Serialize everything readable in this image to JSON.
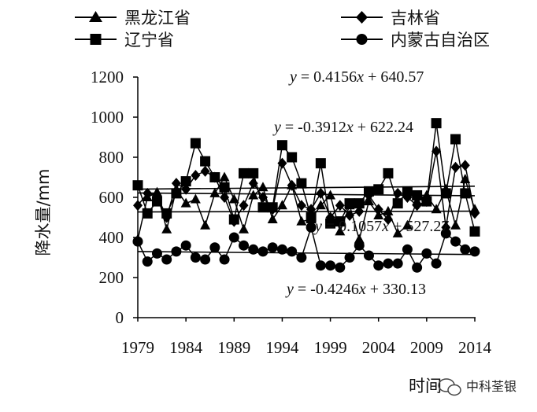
{
  "chart_data": {
    "type": "line",
    "title": "",
    "xlabel": "时间",
    "ylabel": "降水量/mm",
    "ylim": [
      0,
      1200
    ],
    "xlim": [
      1979,
      2014
    ],
    "yticks": [
      "0",
      "200",
      "400",
      "600",
      "800",
      "1000",
      "1200"
    ],
    "xticks": [
      "1979",
      "1984",
      "1989",
      "1994",
      "1999",
      "2004",
      "2009",
      "2014"
    ],
    "legend_placement": "top",
    "x": [
      1979,
      1980,
      1981,
      1982,
      1983,
      1984,
      1985,
      1986,
      1987,
      1988,
      1989,
      1990,
      1991,
      1992,
      1993,
      1994,
      1995,
      1996,
      1997,
      1998,
      1999,
      2000,
      2001,
      2002,
      2003,
      2004,
      2005,
      2006,
      2007,
      2008,
      2009,
      2010,
      2011,
      2012,
      2013,
      2014
    ],
    "series": [
      {
        "name": "黑龙江省",
        "marker": "triangle",
        "values": [
          390,
          600,
          625,
          440,
          640,
          570,
          590,
          460,
          620,
          700,
          590,
          440,
          610,
          650,
          490,
          560,
          660,
          480,
          490,
          560,
          610,
          430,
          560,
          390,
          580,
          510,
          530,
          420,
          460,
          580,
          610,
          540,
          640,
          460,
          690,
          540
        ],
        "trend": {
          "slope": 0.1057,
          "intercept": 527.27,
          "equation": "y = 0.1057x + 527.27"
        }
      },
      {
        "name": "吉林省",
        "marker": "diamond",
        "values": [
          560,
          620,
          610,
          500,
          670,
          640,
          710,
          730,
          700,
          600,
          480,
          560,
          670,
          600,
          540,
          770,
          660,
          560,
          540,
          620,
          500,
          560,
          510,
          530,
          610,
          540,
          490,
          620,
          600,
          560,
          580,
          830,
          450,
          750,
          760,
          520
        ],
        "trend": {
          "slope": 0.4156,
          "intercept": 640.57,
          "equation": "y = 0.4156x + 640.57"
        }
      },
      {
        "name": "辽宁省",
        "marker": "square",
        "values": [
          660,
          520,
          580,
          520,
          620,
          680,
          870,
          780,
          700,
          650,
          490,
          720,
          720,
          550,
          550,
          860,
          800,
          670,
          500,
          770,
          470,
          480,
          570,
          570,
          630,
          640,
          720,
          570,
          630,
          610,
          580,
          970,
          620,
          890,
          620,
          430
        ],
        "trend": {
          "slope": -0.3912,
          "intercept": 622.24,
          "equation": "y = -0.3912x + 622.24"
        }
      },
      {
        "name": "内蒙古自治区",
        "marker": "circle",
        "values": [
          380,
          280,
          320,
          290,
          330,
          360,
          300,
          290,
          350,
          290,
          400,
          360,
          340,
          330,
          350,
          340,
          330,
          300,
          450,
          260,
          260,
          250,
          300,
          360,
          310,
          260,
          270,
          270,
          340,
          250,
          320,
          270,
          420,
          380,
          340,
          330
        ],
        "trend": {
          "slope": -0.4246,
          "intercept": 330.13,
          "equation": "y = -0.4246x + 330.13"
        }
      }
    ],
    "colors": {
      "line": "#000000",
      "background": "#ffffff"
    }
  },
  "watermark": {
    "text": "中科荃银",
    "icon": "wechat-icon"
  }
}
